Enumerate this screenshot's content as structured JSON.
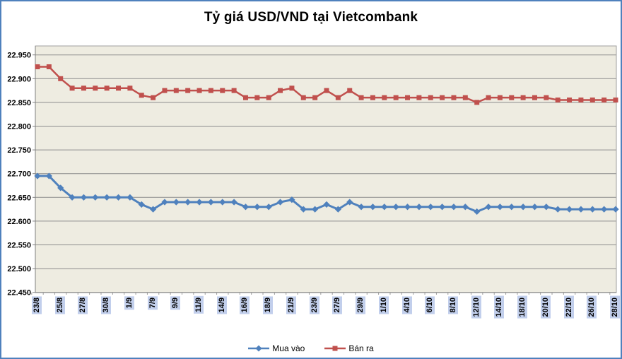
{
  "title": "Tỷ giá USD/VND tại Vietcombank",
  "chart_data": {
    "type": "line",
    "title": "Tỷ giá USD/VND tại Vietcombank",
    "plot_bg": "#eeece1",
    "frame_color": "#4f81bd",
    "grid": true,
    "legend_position": "bottom",
    "y_tick_labels": [
      "22.950",
      "22.900",
      "22.850",
      "22.800",
      "22.750",
      "22.700",
      "22.650",
      "22.600",
      "22.550",
      "22.500",
      "22.450"
    ],
    "ylim": [
      22.45,
      22.968
    ],
    "x_tick_labels_visible": [
      "23/8",
      "25/8",
      "27/8",
      "30/8",
      "1/9",
      "7/9",
      "9/9",
      "11/9",
      "14/9",
      "16/9",
      "18/9",
      "21/9",
      "23/9",
      "27/9",
      "29/9",
      "1/10",
      "4/10",
      "6/10",
      "8/10",
      "12/10",
      "14/10",
      "18/10",
      "20/10",
      "22/10",
      "26/10",
      "28/10"
    ],
    "label_every": 2,
    "n_points": 51,
    "series": [
      {
        "name": "Mua vào",
        "color": "#4f81bd",
        "marker": "diamond",
        "values": [
          22.695,
          22.695,
          22.67,
          22.65,
          22.65,
          22.65,
          22.65,
          22.65,
          22.65,
          22.635,
          22.625,
          22.64,
          22.64,
          22.64,
          22.64,
          22.64,
          22.64,
          22.64,
          22.63,
          22.63,
          22.63,
          22.64,
          22.645,
          22.625,
          22.625,
          22.635,
          22.625,
          22.64,
          22.63,
          22.63,
          22.63,
          22.63,
          22.63,
          22.63,
          22.63,
          22.63,
          22.63,
          22.63,
          22.62,
          22.63,
          22.63,
          22.63,
          22.63,
          22.63,
          22.63,
          22.625,
          22.625,
          22.625,
          22.625,
          22.625,
          22.625
        ]
      },
      {
        "name": "Bán ra",
        "color": "#c0504d",
        "marker": "square",
        "values": [
          22.925,
          22.925,
          22.9,
          22.88,
          22.88,
          22.88,
          22.88,
          22.88,
          22.88,
          22.865,
          22.86,
          22.875,
          22.875,
          22.875,
          22.875,
          22.875,
          22.875,
          22.875,
          22.86,
          22.86,
          22.86,
          22.875,
          22.88,
          22.86,
          22.86,
          22.875,
          22.86,
          22.875,
          22.86,
          22.86,
          22.86,
          22.86,
          22.86,
          22.86,
          22.86,
          22.86,
          22.86,
          22.86,
          22.85,
          22.86,
          22.86,
          22.86,
          22.86,
          22.86,
          22.86,
          22.855,
          22.855,
          22.855,
          22.855,
          22.855,
          22.855
        ]
      }
    ]
  }
}
